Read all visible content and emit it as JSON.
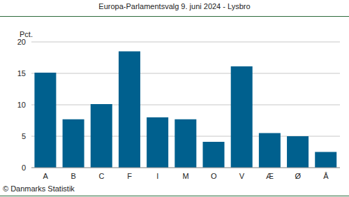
{
  "chart_data": {
    "type": "bar",
    "title": "Europa-Parlamentsvalg 9. juni 2024 - Lysbro",
    "ylabel": "Pct.",
    "annotations": [
      "© Danmarks Statistik"
    ],
    "categories": [
      "A",
      "B",
      "C",
      "F",
      "I",
      "M",
      "O",
      "V",
      "Æ",
      "Ø",
      "Å"
    ],
    "values": [
      15.1,
      7.7,
      10.1,
      18.5,
      8.0,
      7.7,
      4.1,
      16.1,
      5.5,
      5.0,
      2.5
    ],
    "color": "#00608e",
    "ylim": [
      0,
      20
    ],
    "yticks": [
      0,
      5,
      10,
      15,
      20
    ],
    "grid": true
  }
}
